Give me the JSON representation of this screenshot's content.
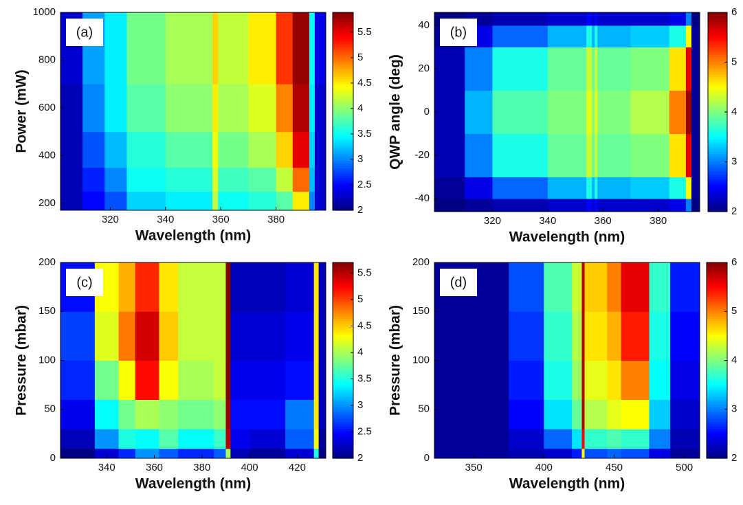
{
  "chart_data": [
    {
      "type": "heatmap",
      "panel_label": "(a)",
      "xlabel": "Wavelength (nm)",
      "ylabel": "Power (mW)",
      "xlim": [
        302,
        398
      ],
      "xticks": [
        320,
        340,
        360,
        380
      ],
      "ylim": [
        171,
        1000
      ],
      "yticks": [
        200,
        400,
        600,
        800,
        1000
      ],
      "clim": [
        2,
        5.89
      ],
      "cticks": [
        2,
        2.5,
        3,
        3.5,
        4,
        4.5,
        5,
        5.5
      ],
      "xbins": [
        302,
        310,
        318,
        326,
        340,
        357,
        359,
        370,
        380,
        386,
        392,
        394,
        398
      ],
      "ybins": [
        171,
        250,
        350,
        500,
        700,
        1000
      ],
      "z": [
        [
          2.2,
          2.5,
          2.8,
          3.3,
          3.4,
          4.2,
          3.5,
          3.6,
          3.8,
          4.5,
          3.0,
          2.3
        ],
        [
          2.2,
          2.6,
          3.0,
          3.5,
          3.6,
          4.3,
          3.7,
          3.8,
          4.2,
          5.0,
          3.2,
          2.3
        ],
        [
          2.2,
          2.8,
          3.2,
          3.6,
          3.8,
          4.4,
          3.9,
          4.1,
          4.6,
          5.5,
          3.3,
          2.3
        ],
        [
          2.2,
          3.0,
          3.4,
          3.8,
          4.0,
          4.5,
          4.1,
          4.3,
          4.9,
          5.7,
          3.4,
          2.3
        ],
        [
          2.3,
          3.1,
          3.4,
          3.9,
          4.1,
          4.6,
          4.2,
          4.5,
          5.2,
          5.8,
          3.5,
          2.4
        ]
      ]
    },
    {
      "type": "heatmap",
      "panel_label": "(b)",
      "xlabel": "Wavelength (nm)",
      "ylabel": "QWP angle (deg)",
      "xlim": [
        299,
        395
      ],
      "xticks": [
        320,
        340,
        360,
        380
      ],
      "ylim": [
        -46,
        46
      ],
      "yticks": [
        -40,
        -20,
        0,
        20,
        40
      ],
      "clim": [
        2,
        6
      ],
      "cticks": [
        2,
        3,
        4,
        5,
        6
      ],
      "xbins": [
        299,
        310,
        320,
        340,
        354,
        356,
        357,
        358,
        370,
        384,
        390,
        392,
        395
      ],
      "ybins": [
        -46,
        -40,
        -30,
        -10,
        10,
        30,
        40,
        46
      ],
      "z": [
        [
          2.0,
          2.1,
          2.2,
          2.3,
          2.5,
          2.3,
          2.5,
          2.3,
          2.3,
          2.4,
          3.0,
          2.0
        ],
        [
          2.1,
          2.4,
          2.9,
          3.2,
          3.6,
          3.2,
          3.6,
          3.2,
          3.3,
          3.6,
          4.5,
          2.1
        ],
        [
          2.2,
          3.0,
          3.6,
          3.9,
          4.3,
          3.9,
          4.3,
          3.9,
          4.0,
          4.6,
          5.6,
          2.1
        ],
        [
          2.2,
          3.2,
          3.8,
          4.0,
          4.4,
          4.0,
          4.4,
          4.0,
          4.2,
          5.0,
          5.9,
          2.1
        ],
        [
          2.2,
          3.0,
          3.6,
          3.9,
          4.3,
          3.9,
          4.3,
          3.9,
          4.0,
          4.6,
          5.6,
          2.1
        ],
        [
          2.1,
          2.4,
          2.9,
          3.2,
          3.6,
          3.2,
          3.6,
          3.2,
          3.3,
          3.6,
          4.5,
          2.1
        ],
        [
          2.0,
          2.1,
          2.2,
          2.3,
          2.5,
          2.3,
          2.5,
          2.3,
          2.3,
          2.4,
          3.0,
          2.0
        ]
      ]
    },
    {
      "type": "heatmap",
      "panel_label": "(c)",
      "xlabel": "Wavelength (nm)",
      "ylabel": "Pressure (mbar)",
      "xlim": [
        320.6,
        432
      ],
      "xticks": [
        340,
        360,
        380,
        400,
        420
      ],
      "ylim": [
        0,
        200
      ],
      "yticks": [
        0,
        50,
        100,
        150,
        200
      ],
      "clim": [
        2,
        5.7
      ],
      "cticks": [
        2,
        2.5,
        3,
        3.5,
        4,
        4.5,
        5,
        5.5
      ],
      "xbins": [
        320.6,
        335,
        345,
        352,
        362,
        370,
        385,
        390,
        392,
        400,
        415,
        427,
        429,
        432
      ],
      "ybins": [
        0,
        10,
        30,
        60,
        100,
        150,
        200
      ],
      "z": [
        [
          2.0,
          2.3,
          2.6,
          3.0,
          2.8,
          2.6,
          2.8,
          4.0,
          2.2,
          2.1,
          2.3,
          3.5,
          2.0
        ],
        [
          2.2,
          3.0,
          3.5,
          3.4,
          3.7,
          3.4,
          3.6,
          5.5,
          2.4,
          2.3,
          2.8,
          4.3,
          2.1
        ],
        [
          2.4,
          3.4,
          3.8,
          4.0,
          3.9,
          3.8,
          3.9,
          5.6,
          2.5,
          2.5,
          2.9,
          4.4,
          2.2
        ],
        [
          2.6,
          3.8,
          4.3,
          5.2,
          4.3,
          4.0,
          4.1,
          5.7,
          2.4,
          2.4,
          2.5,
          4.4,
          2.2
        ],
        [
          2.7,
          4.2,
          4.8,
          5.4,
          4.5,
          4.1,
          4.1,
          5.7,
          2.3,
          2.3,
          2.4,
          4.4,
          2.2
        ],
        [
          2.5,
          4.3,
          4.6,
          5.1,
          4.4,
          4.1,
          4.1,
          5.7,
          2.2,
          2.2,
          2.3,
          4.4,
          2.2
        ]
      ]
    },
    {
      "type": "heatmap",
      "panel_label": "(d)",
      "xlabel": "Wavelength (nm)",
      "ylabel": "Pressure (mbar)",
      "xlim": [
        322,
        511
      ],
      "xticks": [
        350,
        400,
        450,
        500
      ],
      "ylim": [
        0,
        200
      ],
      "yticks": [
        0,
        50,
        100,
        150,
        200
      ],
      "clim": [
        2,
        6
      ],
      "cticks": [
        2,
        3,
        4,
        5,
        6
      ],
      "xbins": [
        322,
        375,
        400,
        420,
        427,
        429,
        445,
        455,
        475,
        490,
        511
      ],
      "ybins": [
        0,
        10,
        30,
        60,
        100,
        150,
        200
      ],
      "z": [
        [
          2.1,
          2.2,
          2.3,
          2.6,
          4.5,
          2.8,
          2.9,
          2.8,
          2.4,
          2.1
        ],
        [
          2.1,
          2.3,
          2.9,
          3.4,
          5.5,
          3.7,
          3.8,
          3.7,
          3.0,
          2.2
        ],
        [
          2.1,
          2.5,
          3.4,
          3.9,
          5.8,
          4.2,
          4.4,
          4.5,
          3.3,
          2.3
        ],
        [
          2.1,
          2.6,
          3.6,
          4.1,
          5.8,
          4.4,
          4.6,
          5.0,
          3.5,
          2.4
        ],
        [
          2.1,
          2.7,
          3.7,
          4.2,
          5.8,
          4.6,
          4.8,
          5.4,
          3.6,
          2.5
        ],
        [
          2.1,
          2.8,
          3.8,
          4.3,
          5.8,
          4.7,
          5.0,
          5.6,
          3.7,
          2.6
        ]
      ]
    }
  ]
}
